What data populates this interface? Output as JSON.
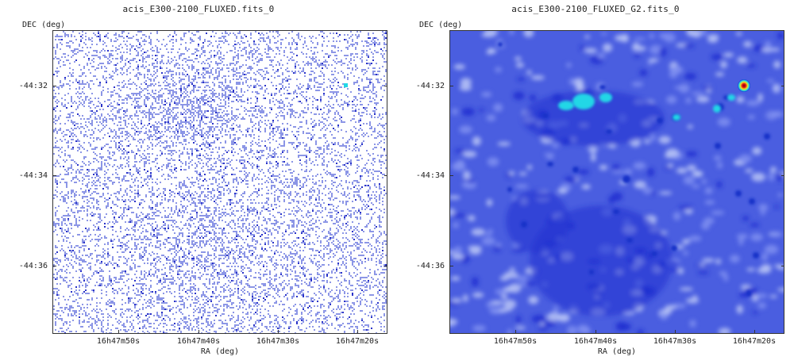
{
  "panels": [
    {
      "title": "acis_E300-2100_FLUXED.fits_0",
      "ylabel": "DEC (deg)",
      "xlabel": "RA (deg)",
      "yticks": [
        "-44:32",
        "-44:34",
        "-44:36"
      ],
      "xticks": [
        "16h47m50s",
        "16h47m40s",
        "16h47m30s",
        "16h47m20s"
      ]
    },
    {
      "title": "acis_E300-2100_FLUXED_G2.fits_0",
      "ylabel": "DEC (deg)",
      "xlabel": "RA (deg)",
      "yticks": [
        "-44:32",
        "-44:34",
        "-44:36"
      ],
      "xticks": [
        "16h47m50s",
        "16h47m40s",
        "16h47m30s",
        "16h47m20s"
      ]
    }
  ],
  "colors": {
    "raw_pixel": "#8c96e6",
    "raw_dark": "#2a33c8",
    "smooth_bg": "#4a5ee0",
    "smooth_dark": "#1f2fd0",
    "smooth_light": "#b8c4f6",
    "source_cyan": "#22d7e6",
    "source_red": "#e01818",
    "source_yellow": "#f5e51a"
  }
}
